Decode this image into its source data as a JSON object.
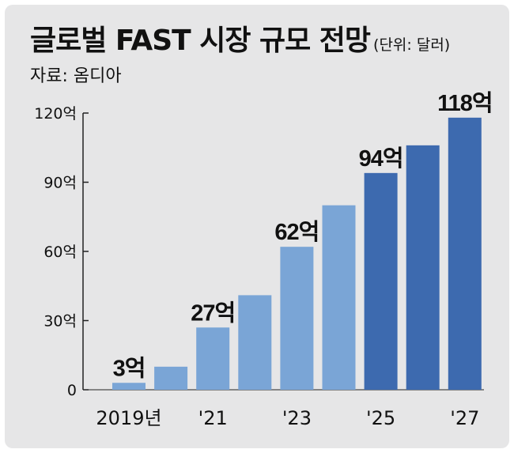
{
  "title": "글로벌 FAST 시장 규모 전망",
  "unit_note": "(단위: 달러)",
  "source": "자료: 옴디아",
  "colors": {
    "light_bar": "#7aa5d6",
    "dark_bar": "#3d6aaf",
    "axis": "#222222",
    "background": "#e6e6e7"
  },
  "chart_data": {
    "type": "bar",
    "title": "글로벌 FAST 시장 규모 전망",
    "ylabel": "",
    "xlabel": "",
    "ylim": [
      0,
      120
    ],
    "yticks": [
      0,
      30,
      60,
      90,
      120
    ],
    "ytick_labels": [
      "0",
      "30억",
      "60억",
      "90억",
      "120억"
    ],
    "categories": [
      "2019",
      "2020",
      "2021",
      "2022",
      "2023",
      "2024",
      "2025",
      "2026",
      "2027"
    ],
    "x_tick_labels": [
      "2019년",
      "",
      "'21",
      "",
      "'23",
      "",
      "'25",
      "",
      "'27"
    ],
    "values": [
      3,
      10,
      27,
      41,
      62,
      80,
      94,
      106,
      118
    ],
    "data_labels": [
      "3억",
      "",
      "27억",
      "",
      "62억",
      "",
      "94억",
      "",
      "118억"
    ],
    "bar_shade": [
      "light",
      "light",
      "light",
      "light",
      "light",
      "light",
      "dark",
      "dark",
      "dark"
    ],
    "grid": false,
    "legend": "none"
  }
}
